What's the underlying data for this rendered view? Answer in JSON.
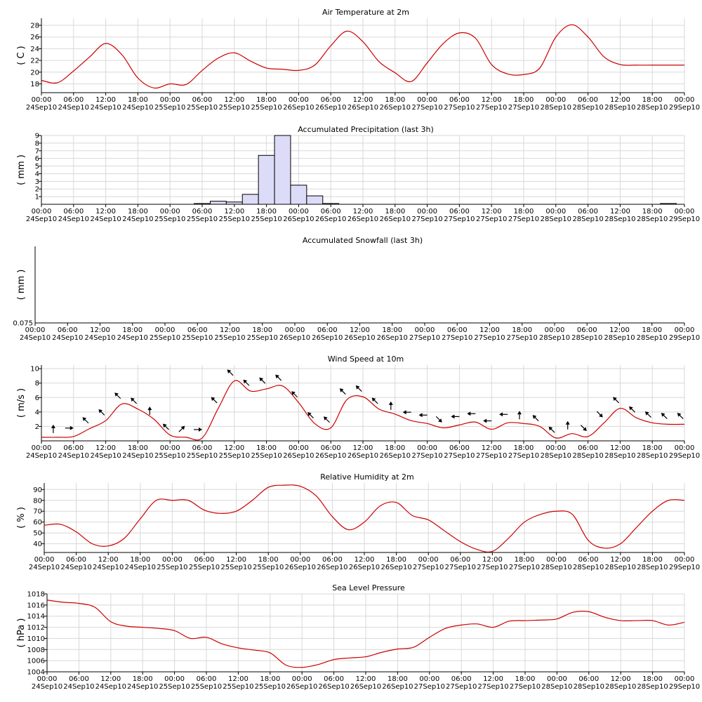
{
  "x_axis": {
    "times": [
      "00:00",
      "06:00",
      "12:00",
      "18:00",
      "00:00",
      "06:00",
      "12:00",
      "18:00",
      "00:00",
      "06:00",
      "12:00",
      "18:00",
      "00:00",
      "06:00",
      "12:00",
      "18:00",
      "00:00",
      "06:00",
      "12:00",
      "18:00",
      "00:00"
    ],
    "dates": [
      "24Sep10",
      "24Sep10",
      "24Sep10",
      "24Sep10",
      "25Sep10",
      "25Sep10",
      "25Sep10",
      "25Sep10",
      "26Sep10",
      "26Sep10",
      "26Sep10",
      "26Sep10",
      "27Sep10",
      "27Sep10",
      "27Sep10",
      "27Sep10",
      "28Sep10",
      "28Sep10",
      "28Sep10",
      "28Sep10",
      "29Sep10"
    ]
  },
  "chart_data": [
    {
      "type": "line",
      "title": "Air Temperature at 2m",
      "ylabel": "( C )",
      "xlabel": "",
      "ylim": [
        16.5,
        29.2
      ],
      "yticks": [
        18,
        20,
        22,
        24,
        26,
        28
      ],
      "line_color": "#cc0000",
      "grid": true,
      "x_hours": [
        0,
        3,
        6,
        9,
        12,
        15,
        18,
        21,
        24,
        27,
        30,
        33,
        36,
        39,
        42,
        45,
        48,
        51,
        54,
        57,
        60,
        63,
        66,
        69,
        72,
        75,
        78,
        81,
        84,
        87,
        90,
        93,
        96,
        99,
        102,
        105,
        108,
        111,
        114,
        117,
        120
      ],
      "values": [
        18.6,
        18.2,
        20.2,
        22.6,
        24.9,
        23.0,
        19.0,
        17.3,
        18.0,
        17.9,
        20.3,
        22.4,
        23.3,
        21.9,
        20.7,
        20.5,
        20.3,
        21.2,
        24.5,
        27.0,
        25.2,
        21.8,
        19.9,
        18.4,
        21.6,
        24.9,
        26.7,
        25.8,
        21.3,
        19.7,
        19.6,
        20.7,
        26.0,
        28.1,
        26.0,
        22.6,
        21.3,
        21.2,
        21.2,
        21.2,
        21.2
      ]
    },
    {
      "type": "bar",
      "title": "Accumulated Precipitation (last 3h)",
      "ylabel": "( mm )",
      "xlabel": "",
      "ylim": [
        0,
        9
      ],
      "yticks": [
        1,
        2,
        3,
        4,
        5,
        6,
        7,
        8,
        9
      ],
      "bar_color": "#dcdcf8",
      "grid": true,
      "x_hours": [
        30,
        33,
        36,
        39,
        42,
        45,
        48,
        51,
        54,
        57,
        117
      ],
      "values": [
        0.1,
        0.4,
        0.3,
        1.3,
        6.4,
        9.0,
        2.5,
        1.1,
        0.1,
        0.0,
        0.1
      ]
    },
    {
      "type": "bar",
      "title": "Accumulated Snowfall (last 3h)",
      "ylabel": "( mm )",
      "xlabel": "",
      "ylim": [
        0,
        0.1
      ],
      "ytick_label": "0.075",
      "grid": false,
      "x_hours": [],
      "values": []
    },
    {
      "type": "line",
      "title": "Wind Speed at 10m",
      "ylabel": "( m/s )",
      "xlabel": "",
      "ylim": [
        0,
        10.5
      ],
      "yticks": [
        2,
        4,
        6,
        8,
        10
      ],
      "line_color": "#cc0000",
      "grid": true,
      "x_hours": [
        0,
        3,
        6,
        9,
        12,
        15,
        18,
        21,
        24,
        27,
        30,
        33,
        36,
        39,
        42,
        45,
        48,
        51,
        54,
        57,
        60,
        63,
        66,
        69,
        72,
        75,
        78,
        81,
        84,
        87,
        90,
        93,
        96,
        99,
        102,
        105,
        108,
        111,
        114,
        117,
        120
      ],
      "values": [
        0.5,
        0.5,
        0.6,
        1.7,
        2.8,
        5.1,
        4.4,
        3.0,
        0.8,
        0.5,
        0.4,
        4.5,
        8.3,
        6.9,
        7.2,
        7.6,
        5.3,
        2.4,
        1.8,
        5.7,
        6.1,
        4.4,
        3.7,
        2.8,
        2.4,
        1.8,
        2.2,
        2.6,
        1.6,
        2.5,
        2.4,
        2.0,
        0.4,
        1.0,
        0.6,
        2.5,
        4.5,
        3.2,
        2.5,
        2.3,
        2.3
      ],
      "arrows_hours": [
        3,
        6,
        9,
        12,
        15,
        18,
        21,
        24,
        27,
        30,
        33,
        36,
        39,
        42,
        45,
        48,
        51,
        54,
        57,
        60,
        63,
        66,
        69,
        72,
        75,
        78,
        81,
        84,
        87,
        90,
        93,
        96,
        99,
        102,
        105,
        108,
        111,
        114,
        117,
        120
      ],
      "arrow_directions_deg": [
        0,
        90,
        315,
        315,
        315,
        315,
        0,
        315,
        45,
        90,
        315,
        315,
        315,
        315,
        315,
        315,
        315,
        315,
        315,
        315,
        315,
        0,
        270,
        270,
        135,
        270,
        270,
        270,
        270,
        0,
        315,
        315,
        0,
        135,
        135,
        315,
        315,
        315,
        315,
        315
      ]
    },
    {
      "type": "line",
      "title": "Relative Humidity at 2m",
      "ylabel": "( % )",
      "xlabel": "",
      "ylim": [
        32,
        96
      ],
      "yticks": [
        40,
        50,
        60,
        70,
        80,
        90
      ],
      "line_color": "#cc0000",
      "grid": true,
      "x_hours": [
        0,
        3,
        6,
        9,
        12,
        15,
        18,
        21,
        24,
        27,
        30,
        33,
        36,
        39,
        42,
        45,
        48,
        51,
        54,
        57,
        60,
        63,
        66,
        69,
        72,
        75,
        78,
        81,
        84,
        87,
        90,
        93,
        96,
        99,
        102,
        105,
        108,
        111,
        114,
        117,
        120
      ],
      "values": [
        57.0,
        58.0,
        51.0,
        40.0,
        38.0,
        45.0,
        63.0,
        80.0,
        80.0,
        80.0,
        71.0,
        68.0,
        70.0,
        80.0,
        92.0,
        94.0,
        93.0,
        84.0,
        65.0,
        53.0,
        60.0,
        75.0,
        78.0,
        66.0,
        62.0,
        52.0,
        42.0,
        35.0,
        33.0,
        45.0,
        60.0,
        67.0,
        70.0,
        67.0,
        43.0,
        36.0,
        40.0,
        55.0,
        70.0,
        80.0,
        80.0
      ]
    },
    {
      "type": "line",
      "title": "Sea Level Pressure",
      "ylabel": "( hPa )",
      "xlabel": "",
      "ylim": [
        1004,
        1018
      ],
      "yticks": [
        1004,
        1006,
        1008,
        1010,
        1012,
        1014,
        1016,
        1018
      ],
      "line_color": "#cc0000",
      "grid": true,
      "x_hours": [
        0,
        3,
        6,
        9,
        12,
        15,
        18,
        21,
        24,
        27,
        30,
        33,
        36,
        39,
        42,
        45,
        48,
        51,
        54,
        57,
        60,
        63,
        66,
        69,
        72,
        75,
        78,
        81,
        84,
        87,
        90,
        93,
        96,
        99,
        102,
        105,
        108,
        111,
        114,
        117,
        120
      ],
      "values": [
        1016.9,
        1016.5,
        1016.3,
        1015.6,
        1013.0,
        1012.2,
        1012.0,
        1011.8,
        1011.4,
        1010.0,
        1010.2,
        1009.0,
        1008.3,
        1007.9,
        1007.4,
        1005.2,
        1004.8,
        1005.3,
        1006.2,
        1006.5,
        1006.7,
        1007.5,
        1008.1,
        1008.4,
        1010.2,
        1011.8,
        1012.4,
        1012.6,
        1012.0,
        1013.1,
        1013.2,
        1013.3,
        1013.5,
        1014.7,
        1014.8,
        1013.8,
        1013.2,
        1013.2,
        1013.2,
        1012.4,
        1012.9
      ]
    }
  ]
}
